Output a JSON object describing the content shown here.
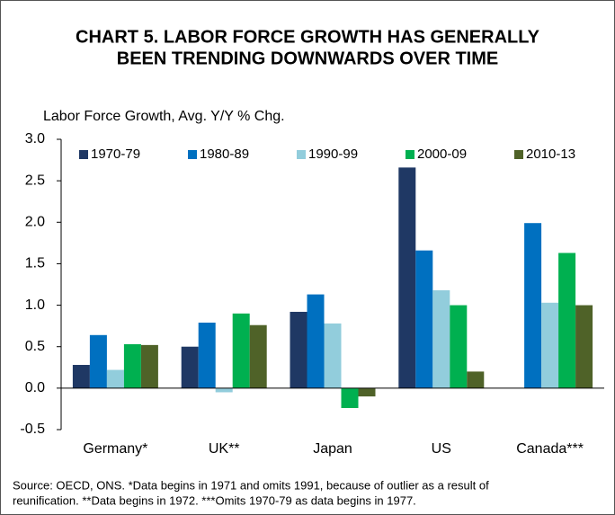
{
  "chart_data": {
    "type": "bar",
    "title": [
      "CHART 5. LABOR FORCE GROWTH HAS GENERALLY",
      "BEEN TRENDING DOWNWARDS OVER TIME"
    ],
    "y_label": "Labor Force Growth, Avg. Y/Y % Chg.",
    "categories": [
      "Germany*",
      "UK**",
      "Japan",
      "US",
      "Canada***"
    ],
    "series": [
      {
        "name": "1970-79",
        "color": "#1f3864",
        "values": [
          0.28,
          0.5,
          0.92,
          2.66,
          null
        ]
      },
      {
        "name": "1980-89",
        "color": "#0070c0",
        "values": [
          0.64,
          0.79,
          1.13,
          1.66,
          1.99
        ]
      },
      {
        "name": "1990-99",
        "color": "#92cddc",
        "values": [
          0.22,
          -0.05,
          0.78,
          1.18,
          1.03
        ]
      },
      {
        "name": "2000-09",
        "color": "#00b050",
        "values": [
          0.53,
          0.9,
          -0.24,
          1.0,
          1.63
        ]
      },
      {
        "name": "2010-13",
        "color": "#4f6228",
        "values": [
          0.52,
          0.76,
          -0.1,
          0.2,
          1.0
        ]
      }
    ],
    "ylim": [
      -0.5,
      3.0
    ],
    "yticks": [
      {
        "value": 3.0,
        "label": "3.0"
      },
      2.5,
      {
        "value": 2.0,
        "label": "2.0"
      },
      1.5,
      {
        "value": 1.0,
        "label": "1.0"
      },
      0.5,
      {
        "value": 0.0,
        "label": "0.0"
      },
      -0.5
    ],
    "legend": "top",
    "source": [
      "Source: OECD, ONS. *Data begins in 1971 and omits 1991, because of outlier as a result of",
      "reunification. **Data begins in 1972. ***Omits 1970-79 as data begins in 1977."
    ]
  }
}
